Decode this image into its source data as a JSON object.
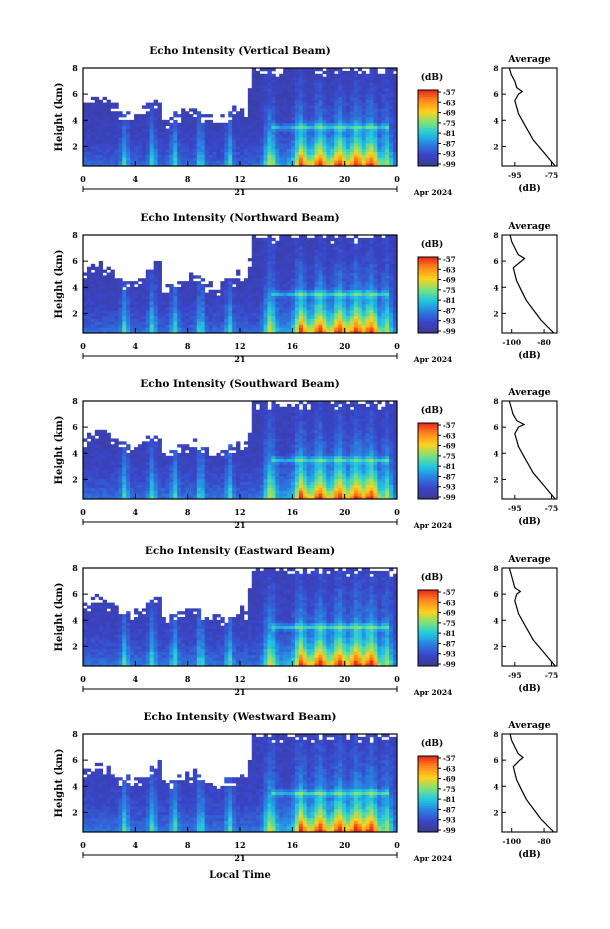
{
  "chart_data": {
    "type": "heatmap",
    "colorbar_title": "(dB)",
    "colorbar_ticks": [
      "-57",
      "-63",
      "-69",
      "-75",
      "-81",
      "-87",
      "-93",
      "-99"
    ],
    "colorbar_colors": [
      "#e8261c",
      "#ff8a1c",
      "#ffd21c",
      "#7ee27a",
      "#22c8e0",
      "#2a7fe0",
      "#3a44c8",
      "#3a3d8a"
    ],
    "xticks": [
      "0",
      "4",
      "8",
      "12",
      "16",
      "20",
      "0"
    ],
    "day_label": "21",
    "month_label": "Apr 2024",
    "xlabel": "Local Time",
    "ylabel": "Height (km)",
    "yticks": [
      "2",
      "4",
      "6",
      "8"
    ],
    "ylim": [
      0.5,
      8
    ],
    "xlim": [
      0,
      24
    ],
    "panels": [
      {
        "title": "Echo Intensity (Vertical Beam)",
        "profile": {
          "title": "Average",
          "xlabel": "(dB)",
          "xticks": [
            "-95",
            "-75"
          ],
          "xlim": [
            -102,
            -72
          ],
          "heights": [
            0.5,
            1,
            1.5,
            2,
            2.5,
            3,
            3.5,
            4,
            4.5,
            5,
            5.5,
            6,
            6.2,
            6.5,
            7,
            7.5,
            8
          ],
          "values": [
            -73,
            -76,
            -79,
            -82,
            -85,
            -87,
            -89,
            -91,
            -93,
            -94,
            -95,
            -93,
            -91,
            -94,
            -95,
            -97,
            -98
          ]
        }
      },
      {
        "title": "Echo Intensity (Northward Beam)",
        "profile": {
          "title": "Average",
          "xlabel": "(dB)",
          "xticks": [
            "-100",
            "-80"
          ],
          "xlim": [
            -106,
            -72
          ],
          "heights": [
            0.5,
            1,
            1.5,
            2,
            2.5,
            3,
            3.5,
            4,
            4.5,
            5,
            5.5,
            6,
            6.2,
            6.5,
            7,
            7.5,
            8
          ],
          "values": [
            -74,
            -78,
            -82,
            -85,
            -88,
            -91,
            -93,
            -95,
            -97,
            -98,
            -99,
            -94,
            -92,
            -96,
            -98,
            -100,
            -101
          ]
        }
      },
      {
        "title": "Echo Intensity (Southward Beam)",
        "profile": {
          "title": "Average",
          "xlabel": "(dB)",
          "xticks": [
            "-95",
            "-75"
          ],
          "xlim": [
            -102,
            -72
          ],
          "heights": [
            0.5,
            1,
            1.5,
            2,
            2.5,
            3,
            3.5,
            4,
            4.5,
            5,
            5.5,
            6,
            6.2,
            6.5,
            7,
            7.5,
            8
          ],
          "values": [
            -73,
            -76,
            -79,
            -82,
            -85,
            -87,
            -89,
            -91,
            -93,
            -94,
            -95,
            -93,
            -90,
            -94,
            -96,
            -97,
            -98
          ]
        }
      },
      {
        "title": "Echo Intensity (Eastward Beam)",
        "profile": {
          "title": "Average",
          "xlabel": "(dB)",
          "xticks": [
            "-95",
            "-75"
          ],
          "xlim": [
            -102,
            -72
          ],
          "heights": [
            0.5,
            1,
            1.5,
            2,
            2.5,
            3,
            3.5,
            4,
            4.5,
            5,
            5.5,
            6,
            6.2,
            6.5,
            7,
            7.5,
            8
          ],
          "values": [
            -73,
            -76,
            -79,
            -82,
            -85,
            -87,
            -89,
            -91,
            -93,
            -94,
            -95,
            -94,
            -92,
            -95,
            -96,
            -97,
            -98
          ]
        }
      },
      {
        "title": "Echo Intensity (Westward Beam)",
        "profile": {
          "title": "Average",
          "xlabel": "(dB)",
          "xticks": [
            "-100",
            "-80"
          ],
          "xlim": [
            -106,
            -72
          ],
          "heights": [
            0.5,
            1,
            1.5,
            2,
            2.5,
            3,
            3.5,
            4,
            4.5,
            5,
            5.5,
            6,
            6.2,
            6.5,
            7,
            7.5,
            8
          ],
          "values": [
            -74,
            -78,
            -82,
            -85,
            -88,
            -91,
            -93,
            -95,
            -97,
            -98,
            -99,
            -95,
            -93,
            -96,
            -98,
            -100,
            -101
          ]
        }
      }
    ]
  }
}
